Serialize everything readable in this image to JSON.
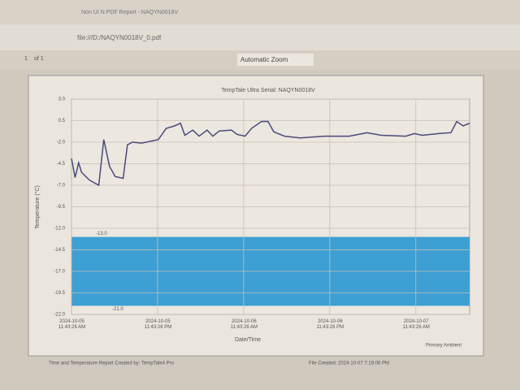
{
  "viewer": {
    "tab_title": "Non UI N PDF Report - NAQYN0018V",
    "url": "file:///D:/NAQYN0018V_0.pdf",
    "page": "1",
    "page_count": "of 1",
    "zoom": "Automatic Zoom"
  },
  "chart_data": {
    "type": "line",
    "title": "TempTale Ultra Serial: NAQYN0018V",
    "y_label": "Temperature (°C)",
    "x_label": "Date/Time",
    "x": [
      0,
      0.5,
      1.0,
      1.4,
      2.5,
      3.8,
      4.5,
      5.3,
      6.1,
      7.2,
      7.8,
      8.5,
      9.8,
      12.1,
      13.2,
      14.4,
      15.2,
      15.8,
      16.9,
      17.8,
      18.9,
      19.7,
      20.6,
      22.3,
      23.1,
      24.2,
      25.1,
      26.5,
      27.4,
      28.2,
      29.7,
      31.9,
      35.3,
      38.7,
      41.2,
      43.2,
      46.6,
      47.8,
      48.9,
      51.2,
      52.9,
      53.7,
      54.6,
      55.5
    ],
    "series": [
      {
        "name": "Primary Ambient",
        "color": "#4a4a7a",
        "values": [
          -3.9,
          -6.1,
          -4.4,
          -5.5,
          -6.4,
          -7.0,
          -1.7,
          -4.8,
          -6.0,
          -6.2,
          -2.3,
          -2.0,
          -2.1,
          -1.7,
          -0.4,
          -0.1,
          0.2,
          -1.2,
          -0.6,
          -1.3,
          -0.6,
          -1.3,
          -0.7,
          -0.6,
          -1.1,
          -1.3,
          -0.4,
          0.4,
          0.4,
          -0.8,
          -1.3,
          -1.5,
          -1.3,
          -1.3,
          -0.9,
          -1.2,
          -1.3,
          -1.0,
          -1.2,
          -1.0,
          -0.9,
          0.4,
          -0.1,
          0.2
        ]
      }
    ],
    "xlim": [
      0,
      55.5
    ],
    "xticks": [
      {
        "value": 0,
        "label": "2024-10-05 11:43:26 AM"
      },
      {
        "value": 12,
        "label": "2024-10-05 11:43:26 PM"
      },
      {
        "value": 24,
        "label": "2024-10-06 11:43:26 AM"
      },
      {
        "value": 36,
        "label": "2024-10-06 11:43:26 PM"
      },
      {
        "value": 48,
        "label": "2024-10-07 11:43:26 AM"
      }
    ],
    "ylim": [
      -22,
      3
    ],
    "yticks": [
      {
        "value": 3,
        "label": "3.0"
      },
      {
        "value": 0.5,
        "label": "0.5"
      },
      {
        "value": -2,
        "label": "-2.0"
      },
      {
        "value": -4.5,
        "label": "-4.5"
      },
      {
        "value": -7,
        "label": "-7.0"
      },
      {
        "value": -9.5,
        "label": "-9.5"
      },
      {
        "value": -12,
        "label": "-12.0"
      },
      {
        "value": -14.5,
        "label": "-14.5"
      },
      {
        "value": -17,
        "label": "-17.0"
      },
      {
        "value": -19.5,
        "label": "-19.5"
      },
      {
        "value": -22,
        "label": "-22.0"
      }
    ],
    "grid": true,
    "band": {
      "upper": {
        "value": -13,
        "label": "-13.0"
      },
      "lower": {
        "value": -21,
        "label": "-21.0"
      },
      "color": "#3d9fd4"
    },
    "footer_left": "Time and Temperature Report Created by: TempTale4 Pro",
    "footer_right": "File Created: 2024-10-07 7:19:06 PM"
  }
}
